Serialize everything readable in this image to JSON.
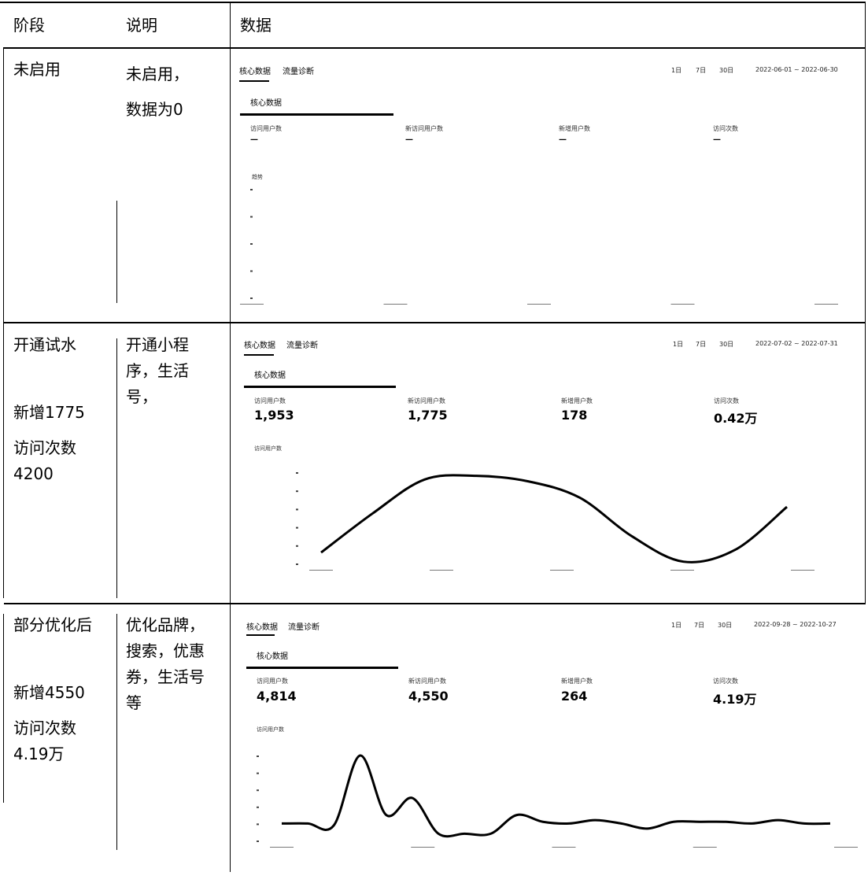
{
  "header": {
    "col1": "阶段",
    "col2": "说明",
    "col3": "数据"
  },
  "rows": [
    {
      "stage_lines": [
        "未启用"
      ],
      "desc_lines": [
        "未启用，",
        "数据为0"
      ],
      "shot": {
        "tabs": [
          "核心数据",
          "流量诊断"
        ],
        "ranges": [
          "1日",
          "7日",
          "30日"
        ],
        "date_range": "2022-06-01 ~ 2022-06-30",
        "sub_tab": "核心数据",
        "metrics": [
          {
            "label": "访问用户数",
            "value": "—"
          },
          {
            "label": "新访问用户数",
            "value": "—"
          },
          {
            "label": "新增用户数",
            "value": "—"
          },
          {
            "label": "访问次数",
            "value": "—"
          }
        ],
        "legend": "趋势"
      }
    },
    {
      "stage_lines": [
        "开通试水",
        "",
        "新增1775",
        "访问次数",
        "4200"
      ],
      "desc_lines": [
        "开通小程",
        "序，生活",
        "号，"
      ],
      "shot": {
        "tabs": [
          "核心数据",
          "流量诊断"
        ],
        "ranges": [
          "1日",
          "7日",
          "30日"
        ],
        "date_range": "2022-07-02 ~ 2022-07-31",
        "sub_tab": "核心数据",
        "metrics": [
          {
            "label": "访问用户数",
            "value": "1,953"
          },
          {
            "label": "新访问用户数",
            "value": "1,775"
          },
          {
            "label": "新增用户数",
            "value": "178"
          },
          {
            "label": "访问次数",
            "value": "0.42万"
          }
        ],
        "legend": "访问用户数"
      }
    },
    {
      "stage_lines": [
        "部分优化后",
        "",
        "新增4550",
        "访问次数",
        "4.19万"
      ],
      "desc_lines": [
        "优化品牌，",
        "搜索，优惠",
        "券，生活号",
        "等"
      ],
      "shot": {
        "tabs": [
          "核心数据",
          "流量诊断"
        ],
        "ranges": [
          "1日",
          "7日",
          "30日"
        ],
        "date_range": "2022-09-28 ~ 2022-10-27",
        "sub_tab": "核心数据",
        "metrics": [
          {
            "label": "访问用户数",
            "value": "4,814"
          },
          {
            "label": "新访问用户数",
            "value": "4,550"
          },
          {
            "label": "新增用户数",
            "value": "264"
          },
          {
            "label": "访问次数",
            "value": "4.19万"
          }
        ],
        "legend": "访问用户数"
      }
    }
  ],
  "chart_data": [
    {
      "type": "line",
      "series": [
        {
          "values": [
            0,
            0,
            0,
            0,
            0
          ]
        }
      ]
    },
    {
      "type": "line",
      "series": [
        {
          "values": [
            0.12,
            0.55,
            0.92,
            0.96,
            0.9,
            0.72,
            0.3,
            0.02,
            0.15,
            0.62
          ]
        }
      ]
    },
    {
      "type": "line",
      "series": [
        {
          "values": [
            0.2,
            0.2,
            0.18,
            1.0,
            0.3,
            0.5,
            0.08,
            0.08,
            0.08,
            0.3,
            0.22,
            0.2,
            0.24,
            0.2,
            0.14,
            0.22,
            0.22,
            0.22,
            0.2,
            0.24,
            0.2,
            0.2
          ]
        }
      ]
    }
  ]
}
